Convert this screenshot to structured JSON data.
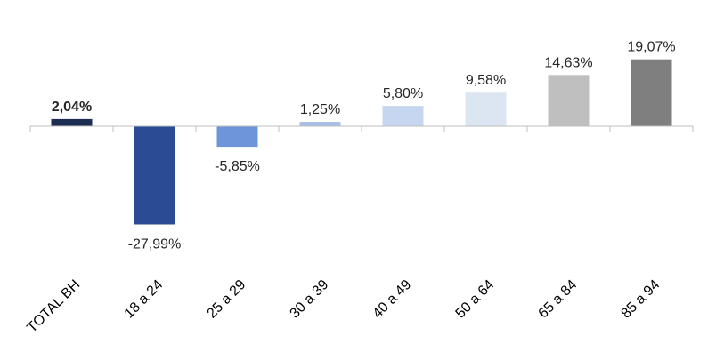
{
  "chart_data": {
    "type": "bar",
    "title": "",
    "xlabel": "",
    "ylabel": "",
    "categories": [
      "TOTAL BH",
      "18 a 24",
      "25 a 29",
      "30 a 39",
      "40 a 49",
      "50 a 64",
      "65 a 84",
      "85 a 94"
    ],
    "values": [
      2.04,
      -27.99,
      -5.85,
      1.25,
      5.8,
      9.58,
      14.63,
      19.07
    ],
    "value_labels": [
      "2,04%",
      "-27,99%",
      "-5,85%",
      "1,25%",
      "5,80%",
      "9,58%",
      "14,63%",
      "19,07%"
    ],
    "colors": [
      "#1c2d52",
      "#2b4b95",
      "#6f95d9",
      "#a6bde6",
      "#c7d6f0",
      "#dce5f2",
      "#bfbfbf",
      "#7f7f7f"
    ],
    "bold_labels": [
      true,
      false,
      false,
      false,
      false,
      false,
      false,
      false
    ],
    "ylim": [
      -30,
      20
    ],
    "grid": false,
    "legend": "none"
  }
}
